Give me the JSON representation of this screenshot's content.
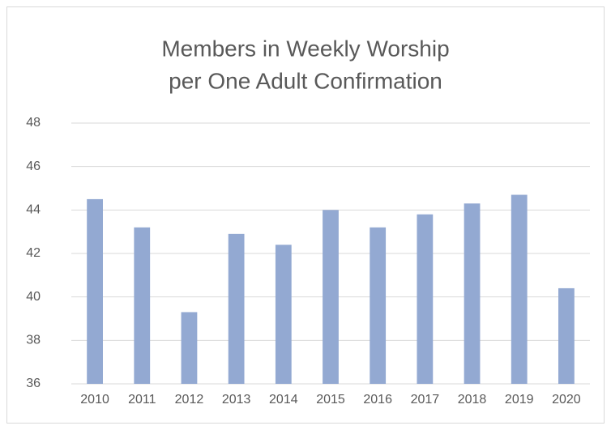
{
  "chart_data": {
    "type": "bar",
    "title": [
      "Members in Weekly Worship",
      "per One Adult Confirmation"
    ],
    "categories": [
      "2010",
      "2011",
      "2012",
      "2013",
      "2014",
      "2015",
      "2016",
      "2017",
      "2018",
      "2019",
      "2020"
    ],
    "values": [
      44.5,
      43.2,
      39.3,
      42.9,
      42.4,
      44.0,
      43.2,
      43.8,
      44.3,
      44.7,
      40.4
    ],
    "color": "#93a9d2",
    "ylim": [
      36,
      48
    ],
    "yticks": [
      36,
      38,
      40,
      42,
      44,
      46,
      48
    ],
    "grid": true
  }
}
